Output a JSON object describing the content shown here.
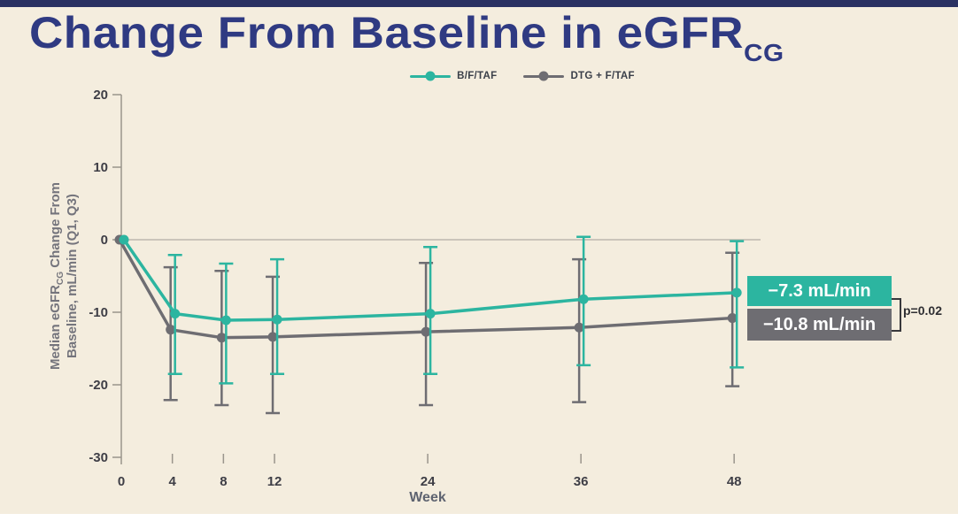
{
  "slide": {
    "bg": "#f4edde",
    "top_bar_color": "#2a3162"
  },
  "title": {
    "main": "Change From Baseline in eGFR",
    "sub": "CG",
    "color": "#2f3a82"
  },
  "legend": [
    {
      "label": "B/F/TAF",
      "color": "#2cb5a0"
    },
    {
      "label": "DTG + F/TAF",
      "color": "#6e6d72"
    }
  ],
  "y_axis_title": {
    "line1_pre": "Median eGFR",
    "line1_sub": "CG",
    "line1_post": " Change From",
    "line2": "Baseline, mL/min (Q1, Q3)"
  },
  "annotations": {
    "bftaf_value": "−7.3 mL/min",
    "dtg_value": "−10.8 mL/min",
    "p_value": "p=0.02"
  },
  "chart_data": {
    "type": "line",
    "title": "Change From Baseline in eGFR(CG)",
    "xlabel": "Week",
    "ylabel": "Median eGFR(CG) Change From Baseline, mL/min (Q1, Q3)",
    "x": [
      0,
      4,
      8,
      12,
      24,
      36,
      48
    ],
    "x_ticks": [
      0,
      4,
      8,
      12,
      24,
      36,
      48
    ],
    "y_ticks": [
      20,
      10,
      0,
      -10,
      -20,
      -30
    ],
    "ylim": [
      -30,
      20
    ],
    "grid": "zero-line-only",
    "legend_position": "top-center",
    "error_bars": "Q1-Q3 interquartile range",
    "series": [
      {
        "name": "B/F/TAF",
        "color": "#2cb5a0",
        "median": [
          0,
          -10.2,
          -11.1,
          -11.0,
          -10.2,
          -8.2,
          -7.3
        ],
        "q1": [
          null,
          -18.5,
          -19.8,
          -18.5,
          -18.5,
          -17.3,
          -17.6
        ],
        "q3": [
          null,
          -2.1,
          -3.3,
          -2.7,
          -1.0,
          0.4,
          -0.2
        ],
        "week48_label": "−7.3 mL/min"
      },
      {
        "name": "DTG + F/TAF",
        "color": "#6e6d72",
        "median": [
          0,
          -12.4,
          -13.5,
          -13.4,
          -12.7,
          -12.1,
          -10.8
        ],
        "q1": [
          null,
          -22.1,
          -22.8,
          -23.9,
          -22.8,
          -22.4,
          -20.2
        ],
        "q3": [
          null,
          -3.8,
          -4.3,
          -5.1,
          -3.2,
          -2.7,
          -1.8
        ],
        "week48_label": "−10.8 mL/min"
      }
    ],
    "p_value": "p=0.02"
  }
}
